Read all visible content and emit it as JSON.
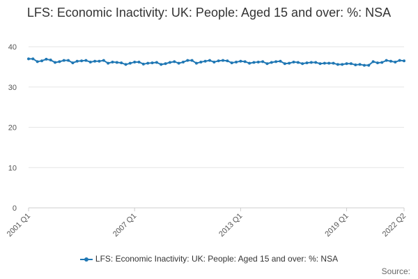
{
  "chart_data": {
    "type": "line",
    "title": "LFS: Economic Inactivity: UK: People: Aged 15 and over: %: NSA",
    "xlabel": "",
    "ylabel": "",
    "ylim": [
      0,
      40
    ],
    "yticks": [
      0,
      10,
      20,
      30,
      40
    ],
    "xtick_labels": [
      "2001 Q1",
      "2007 Q1",
      "2013 Q1",
      "2019 Q1",
      "2022 Q2"
    ],
    "grid": true,
    "legend_position": "bottom",
    "color": "#1f77b4",
    "x": [
      "2001 Q1",
      "2001 Q2",
      "2001 Q3",
      "2001 Q4",
      "2002 Q1",
      "2002 Q2",
      "2002 Q3",
      "2002 Q4",
      "2003 Q1",
      "2003 Q2",
      "2003 Q3",
      "2003 Q4",
      "2004 Q1",
      "2004 Q2",
      "2004 Q3",
      "2004 Q4",
      "2005 Q1",
      "2005 Q2",
      "2005 Q3",
      "2005 Q4",
      "2006 Q1",
      "2006 Q2",
      "2006 Q3",
      "2006 Q4",
      "2007 Q1",
      "2007 Q2",
      "2007 Q3",
      "2007 Q4",
      "2008 Q1",
      "2008 Q2",
      "2008 Q3",
      "2008 Q4",
      "2009 Q1",
      "2009 Q2",
      "2009 Q3",
      "2009 Q4",
      "2010 Q1",
      "2010 Q2",
      "2010 Q3",
      "2010 Q4",
      "2011 Q1",
      "2011 Q2",
      "2011 Q3",
      "2011 Q4",
      "2012 Q1",
      "2012 Q2",
      "2012 Q3",
      "2012 Q4",
      "2013 Q1",
      "2013 Q2",
      "2013 Q3",
      "2013 Q4",
      "2014 Q1",
      "2014 Q2",
      "2014 Q3",
      "2014 Q4",
      "2015 Q1",
      "2015 Q2",
      "2015 Q3",
      "2015 Q4",
      "2016 Q1",
      "2016 Q2",
      "2016 Q3",
      "2016 Q4",
      "2017 Q1",
      "2017 Q2",
      "2017 Q3",
      "2017 Q4",
      "2018 Q1",
      "2018 Q2",
      "2018 Q3",
      "2018 Q4",
      "2019 Q1",
      "2019 Q2",
      "2019 Q3",
      "2019 Q4",
      "2020 Q1",
      "2020 Q2",
      "2020 Q3",
      "2020 Q4",
      "2021 Q1",
      "2021 Q2",
      "2021 Q3",
      "2021 Q4",
      "2022 Q1",
      "2022 Q2"
    ],
    "series": [
      {
        "name": "LFS: Economic Inactivity: UK: People: Aged 15 and over: %: NSA",
        "values": [
          37.0,
          37.0,
          36.3,
          36.5,
          36.9,
          36.7,
          36.1,
          36.3,
          36.6,
          36.6,
          36.0,
          36.4,
          36.5,
          36.6,
          36.2,
          36.4,
          36.4,
          36.6,
          35.9,
          36.2,
          36.1,
          36.0,
          35.6,
          35.9,
          36.2,
          36.2,
          35.7,
          35.9,
          36.0,
          36.1,
          35.6,
          35.8,
          36.1,
          36.3,
          35.9,
          36.2,
          36.6,
          36.6,
          35.9,
          36.2,
          36.4,
          36.6,
          36.2,
          36.5,
          36.6,
          36.5,
          36.0,
          36.2,
          36.4,
          36.3,
          35.9,
          36.1,
          36.2,
          36.3,
          35.8,
          36.1,
          36.3,
          36.4,
          35.8,
          35.9,
          36.2,
          36.1,
          35.8,
          36.0,
          36.1,
          36.1,
          35.8,
          35.9,
          35.9,
          35.9,
          35.6,
          35.6,
          35.8,
          35.8,
          35.5,
          35.6,
          35.4,
          35.4,
          36.3,
          36.0,
          36.1,
          36.6,
          36.4,
          36.2,
          36.6,
          36.5
        ]
      }
    ],
    "source_label": "Source:"
  }
}
